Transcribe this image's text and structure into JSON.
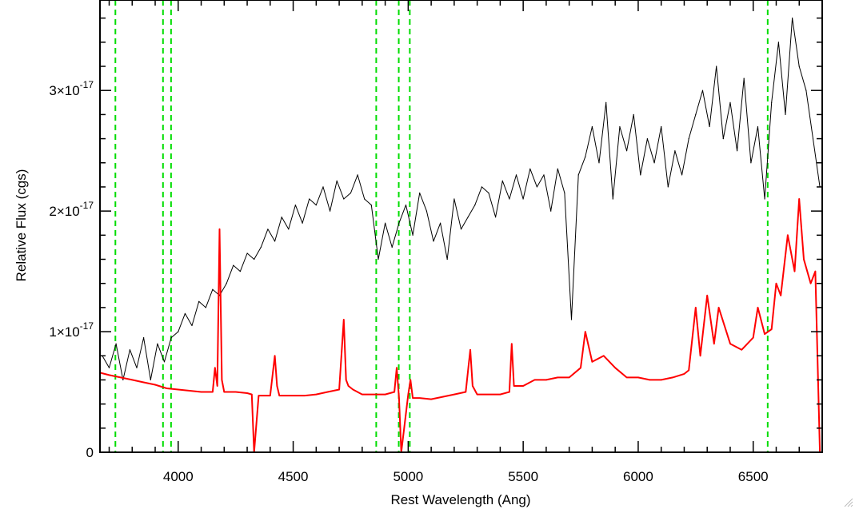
{
  "chart_data": {
    "type": "line",
    "xlabel": "Rest Wavelength (Ang)",
    "ylabel": "Relative Flux (cgs)",
    "xlim": [
      3660,
      6800
    ],
    "ylim": [
      0,
      3.75e-17
    ],
    "x_ticks": [
      {
        "value": 4000,
        "label": "4000"
      },
      {
        "value": 4500,
        "label": "4500"
      },
      {
        "value": 5000,
        "label": "5000"
      },
      {
        "value": 5500,
        "label": "5500"
      },
      {
        "value": 6000,
        "label": "6000"
      },
      {
        "value": 6500,
        "label": "6500"
      }
    ],
    "y_ticks": [
      {
        "value": 0,
        "mantissa": "0",
        "exponent": ""
      },
      {
        "value": 1e-17,
        "mantissa": "1×10",
        "exponent": "-17"
      },
      {
        "value": 2e-17,
        "mantissa": "2×10",
        "exponent": "-17"
      },
      {
        "value": 3e-17,
        "mantissa": "3×10",
        "exponent": "-17"
      }
    ],
    "grid": false,
    "colors": {
      "spectrum": "#000000",
      "model": "#ff0000",
      "lines": "#00dd00"
    },
    "vertical_lines": [
      3727,
      3934,
      3969,
      4861,
      4959,
      5007,
      6563
    ],
    "series": [
      {
        "color": "#000000",
        "description_units": "1e-17",
        "x": [
          3670,
          3700,
          3730,
          3760,
          3790,
          3820,
          3850,
          3880,
          3910,
          3940,
          3970,
          4000,
          4030,
          4060,
          4090,
          4120,
          4150,
          4180,
          4210,
          4240,
          4270,
          4300,
          4330,
          4360,
          4390,
          4420,
          4450,
          4480,
          4510,
          4540,
          4570,
          4600,
          4630,
          4660,
          4690,
          4720,
          4750,
          4780,
          4810,
          4840,
          4870,
          4900,
          4930,
          4960,
          4990,
          5020,
          5050,
          5080,
          5110,
          5140,
          5170,
          5200,
          5230,
          5260,
          5290,
          5320,
          5350,
          5380,
          5410,
          5440,
          5470,
          5500,
          5530,
          5560,
          5590,
          5620,
          5650,
          5680,
          5710,
          5740,
          5770,
          5800,
          5830,
          5860,
          5890,
          5920,
          5950,
          5980,
          6010,
          6040,
          6070,
          6100,
          6130,
          6160,
          6190,
          6220,
          6250,
          6280,
          6310,
          6340,
          6370,
          6400,
          6430,
          6460,
          6490,
          6520,
          6550,
          6580,
          6610,
          6640,
          6670,
          6700,
          6730,
          6760,
          6790
        ],
        "values": [
          0.8,
          0.7,
          0.9,
          0.6,
          0.85,
          0.7,
          0.95,
          0.6,
          0.9,
          0.75,
          0.95,
          1.0,
          1.15,
          1.05,
          1.25,
          1.2,
          1.35,
          1.3,
          1.4,
          1.55,
          1.5,
          1.65,
          1.6,
          1.7,
          1.85,
          1.75,
          1.95,
          1.85,
          2.05,
          1.9,
          2.1,
          2.05,
          2.2,
          2.0,
          2.25,
          2.1,
          2.15,
          2.3,
          2.1,
          2.05,
          1.6,
          1.9,
          1.7,
          1.9,
          2.05,
          1.8,
          2.15,
          2.0,
          1.75,
          1.9,
          1.6,
          2.1,
          1.85,
          1.95,
          2.05,
          2.2,
          2.15,
          1.95,
          2.25,
          2.1,
          2.3,
          2.1,
          2.35,
          2.2,
          2.3,
          2.0,
          2.35,
          2.15,
          1.1,
          2.3,
          2.45,
          2.7,
          2.4,
          2.9,
          2.1,
          2.7,
          2.5,
          2.8,
          2.3,
          2.6,
          2.4,
          2.7,
          2.2,
          2.5,
          2.3,
          2.6,
          2.8,
          3.0,
          2.7,
          3.2,
          2.6,
          2.9,
          2.5,
          3.1,
          2.4,
          2.7,
          2.1,
          2.9,
          3.4,
          2.8,
          3.6,
          3.2,
          3.0,
          2.6,
          2.2
        ]
      },
      {
        "color": "#ff0000",
        "description_units": "1e-17",
        "x": [
          3660,
          3700,
          3750,
          3800,
          3850,
          3900,
          3950,
          4000,
          4050,
          4100,
          4150,
          4160,
          4170,
          4180,
          4190,
          4200,
          4250,
          4300,
          4320,
          4330,
          4350,
          4400,
          4420,
          4430,
          4440,
          4500,
          4550,
          4600,
          4650,
          4700,
          4720,
          4730,
          4740,
          4760,
          4800,
          4850,
          4900,
          4940,
          4950,
          4960,
          4970,
          5000,
          5010,
          5020,
          5050,
          5100,
          5150,
          5200,
          5250,
          5270,
          5280,
          5300,
          5350,
          5400,
          5440,
          5450,
          5460,
          5500,
          5550,
          5600,
          5650,
          5700,
          5750,
          5770,
          5800,
          5850,
          5900,
          5950,
          6000,
          6050,
          6100,
          6150,
          6200,
          6220,
          6250,
          6270,
          6300,
          6330,
          6350,
          6400,
          6450,
          6500,
          6520,
          6550,
          6580,
          6600,
          6620,
          6650,
          6680,
          6700,
          6720,
          6750,
          6770,
          6790
        ],
        "values": [
          0.66,
          0.64,
          0.62,
          0.6,
          0.58,
          0.56,
          0.53,
          0.52,
          0.51,
          0.5,
          0.5,
          0.7,
          0.55,
          1.85,
          0.6,
          0.5,
          0.5,
          0.49,
          0.48,
          0.0,
          0.47,
          0.47,
          0.8,
          0.55,
          0.47,
          0.47,
          0.47,
          0.48,
          0.5,
          0.52,
          1.1,
          0.6,
          0.55,
          0.52,
          0.48,
          0.48,
          0.48,
          0.5,
          0.7,
          0.45,
          0.0,
          0.48,
          0.6,
          0.45,
          0.45,
          0.44,
          0.46,
          0.48,
          0.5,
          0.85,
          0.55,
          0.48,
          0.48,
          0.48,
          0.5,
          0.9,
          0.55,
          0.55,
          0.6,
          0.6,
          0.62,
          0.62,
          0.7,
          1.0,
          0.75,
          0.8,
          0.7,
          0.62,
          0.62,
          0.6,
          0.6,
          0.62,
          0.65,
          0.68,
          1.2,
          0.8,
          1.3,
          0.9,
          1.2,
          0.9,
          0.85,
          0.95,
          1.2,
          0.98,
          1.02,
          1.4,
          1.3,
          1.8,
          1.5,
          2.1,
          1.6,
          1.4,
          1.5,
          0.0
        ]
      }
    ]
  }
}
